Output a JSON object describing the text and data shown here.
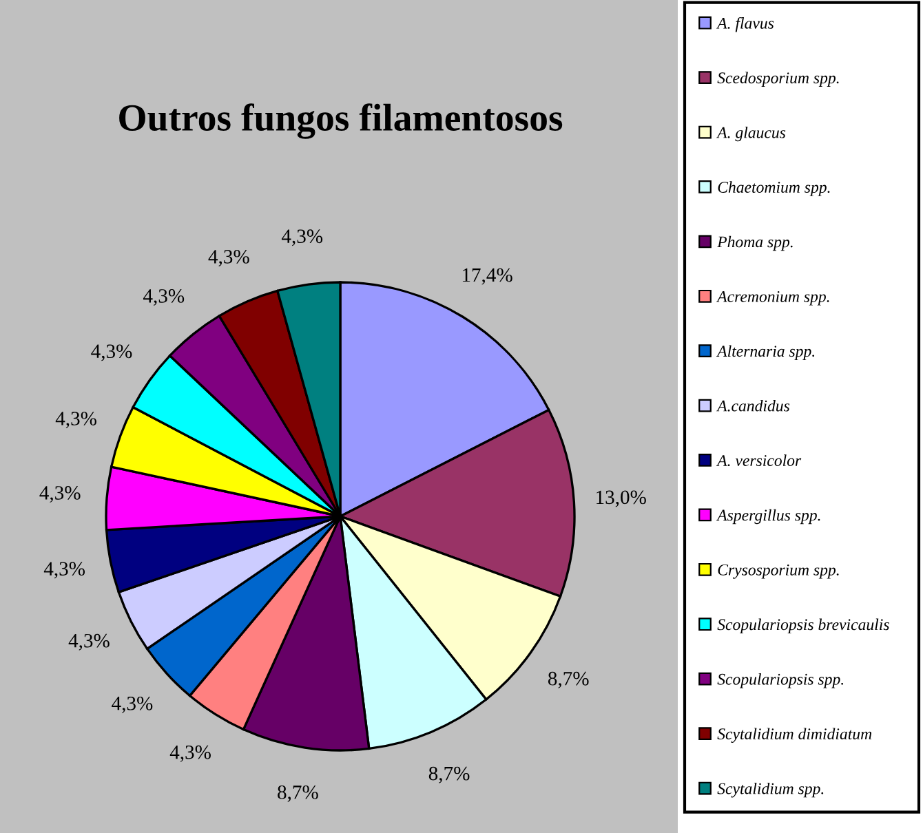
{
  "chart_data": {
    "type": "pie",
    "title": "Outros fungos filamentosos",
    "categories": [
      "A. flavus",
      "Scedosporium spp.",
      "A. glaucus",
      "Chaetomium spp.",
      "Phoma spp.",
      "Acremonium spp.",
      "Alternaria spp.",
      "A.candidus",
      "A. versicolor",
      "Aspergillus spp.",
      "Crysosporium spp.",
      "Scopulariopsis brevicaulis",
      "Scopulariopsis spp.",
      "Scytalidium dimidiatum",
      "Scytalidium spp."
    ],
    "values": [
      17.4,
      13.0,
      8.7,
      8.7,
      8.7,
      4.3,
      4.3,
      4.3,
      4.3,
      4.3,
      4.3,
      4.3,
      4.3,
      4.3,
      4.3
    ],
    "value_labels": [
      "17,4%",
      "13,0%",
      "8,7%",
      "8,7%",
      "8,7%",
      "4,3%",
      "4,3%",
      "4,3%",
      "4,3%",
      "4,3%",
      "4,3%",
      "4,3%",
      "4,3%",
      "4,3%",
      "4,3%"
    ],
    "colors": [
      "#9999ff",
      "#993366",
      "#ffffcc",
      "#ccffff",
      "#660066",
      "#ff8080",
      "#0066cc",
      "#ccccff",
      "#000080",
      "#ff00ff",
      "#ffff00",
      "#00ffff",
      "#800080",
      "#800000",
      "#008080"
    ],
    "legend": "right"
  }
}
